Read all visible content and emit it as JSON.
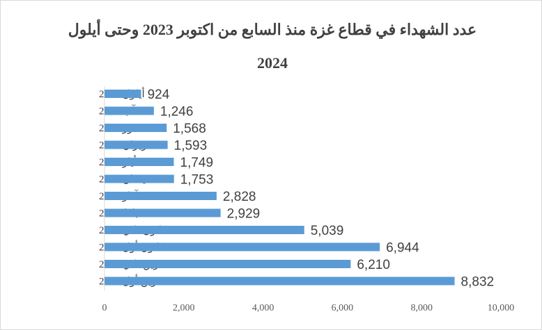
{
  "chart_data": {
    "type": "bar",
    "orientation": "horizontal",
    "title": "عدد الشهداء في قطاع غزة منذ السابع من اكتوبر 2023 وحتى  أيلول 2024",
    "categories": [
      "أيلول 2024",
      "آب 2024",
      "تموز 2024",
      "حزيران 2024",
      "أيار 2024",
      "نيسان 2024",
      "آذار 2024",
      "شباط 2024",
      "كانون ثاني 2024",
      "كانون أول 2023",
      "تشرين ثاني 2023",
      "تشرين أول 2023"
    ],
    "values": [
      924,
      1246,
      1568,
      1593,
      1749,
      1753,
      2828,
      2929,
      5039,
      6944,
      6210,
      8832
    ],
    "value_labels": [
      "924",
      "1,246",
      "1,568",
      "1,593",
      "1,749",
      "1,753",
      "2,828",
      "2,929",
      "5,039",
      "6,944",
      "6,210",
      "8,832"
    ],
    "xlim": [
      0,
      10000
    ],
    "x_ticks": [
      0,
      2000,
      4000,
      6000,
      8000,
      10000
    ],
    "x_tick_labels": [
      "0",
      "2,000",
      "4,000",
      "6,000",
      "8,000",
      "10,000"
    ],
    "xlabel": "",
    "ylabel": "",
    "grid": false,
    "legend": "none",
    "bar_color": "#5b9bd5",
    "text_color": "#404040"
  }
}
